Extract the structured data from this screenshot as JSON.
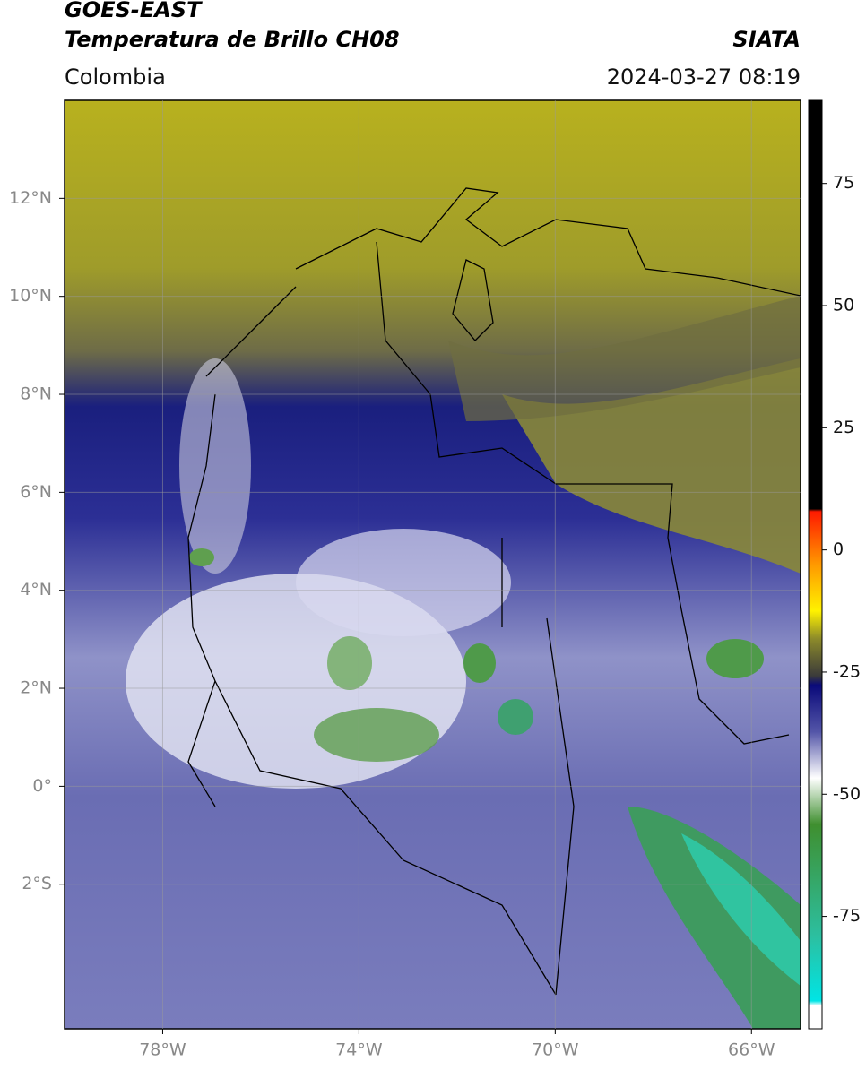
{
  "header": {
    "satellite": "GOES-EAST",
    "product": "Temperatura de Brillo CH08",
    "source": "SIATA",
    "region": "Colombia",
    "timestamp": "2024-03-27 08:19"
  },
  "map": {
    "xlim": [
      -80,
      -65
    ],
    "ylim": [
      -4.95,
      14
    ],
    "xticks": [
      {
        "value": -78,
        "label": "78°W"
      },
      {
        "value": -74,
        "label": "74°W"
      },
      {
        "value": -70,
        "label": "70°W"
      },
      {
        "value": -66,
        "label": "66°W"
      }
    ],
    "yticks": [
      {
        "value": 12,
        "label": "12°N"
      },
      {
        "value": 10,
        "label": "10°N"
      },
      {
        "value": 8,
        "label": "8°N"
      },
      {
        "value": 6,
        "label": "6°N"
      },
      {
        "value": 4,
        "label": "4°N"
      },
      {
        "value": 2,
        "label": "2°N"
      },
      {
        "value": 0,
        "label": "0°"
      },
      {
        "value": -2,
        "label": "2°S"
      }
    ]
  },
  "colorbar": {
    "lim": [
      -98,
      92
    ],
    "ticks": [
      75,
      50,
      25,
      0,
      -25,
      -50,
      -75
    ]
  }
}
